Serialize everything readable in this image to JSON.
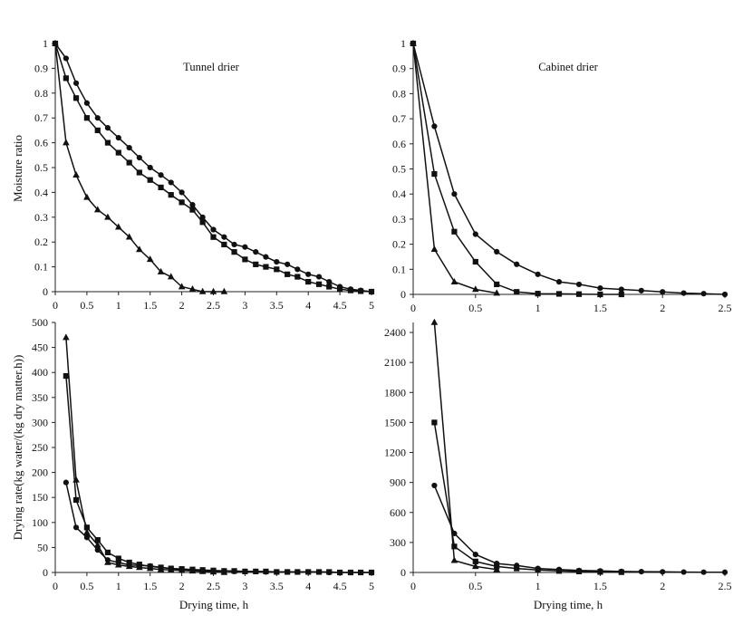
{
  "chart_data": [
    {
      "id": "tl",
      "type": "line",
      "title": "Tunnel drier",
      "xlabel": "",
      "ylabel": "Moisture ratio",
      "xlim": [
        0,
        5
      ],
      "ylim": [
        0,
        1
      ],
      "xticks": [
        0,
        0.5,
        1,
        1.5,
        2,
        2.5,
        3,
        3.5,
        4,
        4.5,
        5
      ],
      "xticklabels": [
        "0",
        "0.5",
        "1",
        "1.5",
        "2",
        "2.5",
        "3",
        "3.5",
        "4",
        "4.5",
        "5"
      ],
      "yticks": [
        0,
        0.1,
        0.2,
        0.3,
        0.4,
        0.5,
        0.6,
        0.7,
        0.8,
        0.9,
        1
      ],
      "yticklabels": [
        "0",
        "0.1",
        "0.2",
        "0.3",
        "0.4",
        "0.5",
        "0.6",
        "0.7",
        "0.8",
        "0.9",
        "1"
      ],
      "series": [
        {
          "marker": "circle",
          "x": [
            0,
            0.17,
            0.33,
            0.5,
            0.67,
            0.83,
            1.0,
            1.17,
            1.33,
            1.5,
            1.67,
            1.83,
            2.0,
            2.17,
            2.33,
            2.5,
            2.67,
            2.83,
            3.0,
            3.17,
            3.33,
            3.5,
            3.67,
            3.83,
            4.0,
            4.17,
            4.33,
            4.5,
            4.67,
            4.83,
            5.0
          ],
          "y": [
            1.0,
            0.94,
            0.84,
            0.76,
            0.7,
            0.66,
            0.62,
            0.58,
            0.54,
            0.5,
            0.47,
            0.44,
            0.4,
            0.35,
            0.3,
            0.25,
            0.22,
            0.19,
            0.18,
            0.16,
            0.14,
            0.12,
            0.11,
            0.09,
            0.07,
            0.06,
            0.04,
            0.02,
            0.01,
            0.005,
            0
          ]
        },
        {
          "marker": "square",
          "x": [
            0,
            0.17,
            0.33,
            0.5,
            0.67,
            0.83,
            1.0,
            1.17,
            1.33,
            1.5,
            1.67,
            1.83,
            2.0,
            2.17,
            2.33,
            2.5,
            2.67,
            2.83,
            3.0,
            3.17,
            3.33,
            3.5,
            3.67,
            3.83,
            4.0,
            4.17,
            4.33,
            4.5,
            4.67,
            4.83,
            5.0
          ],
          "y": [
            1.0,
            0.86,
            0.78,
            0.7,
            0.65,
            0.6,
            0.56,
            0.52,
            0.48,
            0.45,
            0.42,
            0.39,
            0.36,
            0.33,
            0.28,
            0.22,
            0.19,
            0.16,
            0.13,
            0.11,
            0.1,
            0.09,
            0.07,
            0.06,
            0.04,
            0.03,
            0.02,
            0.01,
            0.005,
            0.002,
            0
          ]
        },
        {
          "marker": "triangle",
          "x": [
            0,
            0.17,
            0.33,
            0.5,
            0.67,
            0.83,
            1.0,
            1.17,
            1.33,
            1.5,
            1.67,
            1.83,
            2.0,
            2.17,
            2.33,
            2.5,
            2.67
          ],
          "y": [
            1.0,
            0.6,
            0.47,
            0.38,
            0.33,
            0.3,
            0.26,
            0.22,
            0.17,
            0.13,
            0.08,
            0.06,
            0.02,
            0.01,
            0,
            0,
            0
          ]
        }
      ]
    },
    {
      "id": "tr",
      "type": "line",
      "title": "Cabinet drier",
      "xlabel": "",
      "ylabel": "",
      "xlim": [
        0,
        2.5
      ],
      "ylim": [
        0,
        1
      ],
      "xticks": [
        0,
        0.5,
        1,
        1.5,
        2,
        2.5
      ],
      "xticklabels": [
        "0",
        "0.5",
        "1",
        "1.5",
        "2",
        "2.5"
      ],
      "yticks": [
        0,
        0.1,
        0.2,
        0.3,
        0.4,
        0.5,
        0.6,
        0.7,
        0.8,
        0.9,
        1
      ],
      "yticklabels": [
        "0",
        "0.1",
        "0.2",
        "0.3",
        "0.4",
        "0.5",
        "0.6",
        "0.7",
        "0.8",
        "0.9",
        "1"
      ],
      "series": [
        {
          "marker": "circle",
          "x": [
            0,
            0.17,
            0.33,
            0.5,
            0.67,
            0.83,
            1.0,
            1.17,
            1.33,
            1.5,
            1.67,
            1.83,
            2.0,
            2.17,
            2.33,
            2.5
          ],
          "y": [
            1.0,
            0.67,
            0.4,
            0.24,
            0.17,
            0.12,
            0.08,
            0.05,
            0.04,
            0.025,
            0.02,
            0.015,
            0.01,
            0.005,
            0.003,
            0
          ]
        },
        {
          "marker": "square",
          "x": [
            0,
            0.17,
            0.33,
            0.5,
            0.67,
            0.83,
            1.0,
            1.17,
            1.33,
            1.5,
            1.67
          ],
          "y": [
            1.0,
            0.48,
            0.25,
            0.13,
            0.04,
            0.01,
            0.003,
            0.002,
            0.001,
            0,
            0
          ]
        },
        {
          "marker": "triangle",
          "x": [
            0,
            0.17,
            0.33,
            0.5,
            0.67
          ],
          "y": [
            1.0,
            0.18,
            0.05,
            0.02,
            0.005
          ]
        }
      ]
    },
    {
      "id": "bl",
      "type": "line",
      "title": "",
      "xlabel": "Drying time, h",
      "ylabel": "Drying rate(kg water/(kg dry matter.h))",
      "xlim": [
        0,
        5
      ],
      "ylim": [
        0,
        500
      ],
      "xticks": [
        0,
        0.5,
        1,
        1.5,
        2,
        2.5,
        3,
        3.5,
        4,
        4.5,
        5
      ],
      "xticklabels": [
        "0",
        "0.5",
        "1",
        "1.5",
        "2",
        "2.5",
        "3",
        "3.5",
        "4",
        "4.5",
        "5"
      ],
      "yticks": [
        0,
        50,
        100,
        150,
        200,
        250,
        300,
        350,
        400,
        450,
        500
      ],
      "yticklabels": [
        "0",
        "50",
        "100",
        "150",
        "200",
        "250",
        "300",
        "350",
        "400",
        "450",
        "500"
      ],
      "series": [
        {
          "marker": "circle",
          "x": [
            0.17,
            0.33,
            0.5,
            0.67,
            0.83,
            1.0,
            1.17,
            1.33,
            1.5,
            1.67,
            1.83,
            2.0,
            2.17,
            2.33,
            2.5,
            2.67,
            2.83,
            3.0,
            3.17,
            3.33,
            3.5,
            3.67,
            3.83,
            4.0,
            4.17,
            4.33,
            4.5,
            4.67,
            4.83,
            5.0
          ],
          "y": [
            180,
            90,
            70,
            45,
            25,
            20,
            15,
            14,
            13,
            10,
            8,
            6,
            5,
            4,
            3,
            3,
            2,
            2,
            2,
            1,
            1,
            1,
            1,
            1,
            1,
            0,
            0,
            0,
            0,
            0
          ]
        },
        {
          "marker": "square",
          "x": [
            0.17,
            0.33,
            0.5,
            0.67,
            0.83,
            1.0,
            1.17,
            1.33,
            1.5,
            1.67,
            1.83,
            2.0,
            2.17,
            2.33,
            2.5,
            2.67,
            2.83,
            3.0,
            3.17,
            3.33,
            3.5,
            3.67,
            3.83,
            4.0,
            4.17,
            4.33,
            4.5,
            4.67,
            4.83,
            5.0
          ],
          "y": [
            393,
            145,
            90,
            65,
            40,
            28,
            20,
            16,
            12,
            10,
            8,
            7,
            6,
            5,
            4,
            3,
            3,
            2,
            2,
            2,
            1,
            1,
            1,
            1,
            1,
            1,
            0,
            0,
            0,
            0
          ]
        },
        {
          "marker": "triangle",
          "x": [
            0.17,
            0.33,
            0.5,
            0.67,
            0.83,
            1.0,
            1.17,
            1.33,
            1.5,
            1.67,
            1.83,
            2.0,
            2.17,
            2.33,
            2.5,
            2.67
          ],
          "y": [
            470,
            185,
            80,
            55,
            20,
            15,
            12,
            10,
            8,
            6,
            5,
            4,
            3,
            2,
            1,
            0
          ]
        }
      ]
    },
    {
      "id": "br",
      "type": "line",
      "title": "",
      "xlabel": "Drying time, h",
      "ylabel": "",
      "xlim": [
        0,
        2.5
      ],
      "ylim": [
        0,
        2500
      ],
      "xticks": [
        0,
        0.5,
        1,
        1.5,
        2,
        2.5
      ],
      "xticklabels": [
        "0",
        "0.5",
        "1",
        "1.5",
        "2",
        "2.5"
      ],
      "yticks": [
        0,
        300,
        600,
        900,
        1200,
        1500,
        1800,
        2100,
        2400
      ],
      "yticklabels": [
        "0",
        "300",
        "600",
        "900",
        "1200",
        "1500",
        "1800",
        "2100",
        "2400"
      ],
      "series": [
        {
          "marker": "circle",
          "x": [
            0.17,
            0.33,
            0.5,
            0.67,
            0.83,
            1.0,
            1.17,
            1.33,
            1.5,
            1.67,
            1.83,
            2.0,
            2.17,
            2.33,
            2.5
          ],
          "y": [
            870,
            390,
            180,
            90,
            70,
            40,
            30,
            20,
            15,
            10,
            8,
            6,
            4,
            3,
            2
          ]
        },
        {
          "marker": "square",
          "x": [
            0.17,
            0.33,
            0.5,
            0.67,
            0.83,
            1.0,
            1.17,
            1.33,
            1.5,
            1.67
          ],
          "y": [
            1500,
            260,
            110,
            60,
            40,
            25,
            15,
            10,
            5,
            3
          ]
        },
        {
          "marker": "triangle",
          "x": [
            0.17,
            0.33,
            0.5,
            0.67
          ],
          "y": [
            2500,
            120,
            60,
            30
          ]
        }
      ]
    }
  ]
}
